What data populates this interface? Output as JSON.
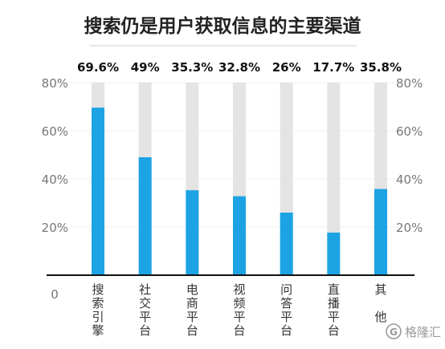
{
  "chart_data": {
    "type": "bar",
    "title": "搜索仍是用户获取信息的主要渠道",
    "categories": [
      "搜索引擎",
      "社交平台",
      "电商平台",
      "视频平台",
      "问答平台",
      "直播平台",
      "其他"
    ],
    "values": [
      69.6,
      49,
      35.3,
      32.8,
      26,
      17.7,
      35.8
    ],
    "value_labels": [
      "69.6%",
      "49%",
      "35.3%",
      "32.8%",
      "26%",
      "17.7%",
      "35.8%"
    ],
    "ylim": [
      0,
      80
    ],
    "ticks": [
      {
        "value": 20,
        "label": "20%"
      },
      {
        "value": 40,
        "label": "40%"
      },
      {
        "value": 60,
        "label": "60%"
      },
      {
        "value": 80,
        "label": "80%"
      }
    ],
    "zero_label": "0",
    "colors": {
      "bar": "#1ca3e4",
      "background_bar": "#e4e4e4",
      "baseline": "#111111"
    }
  },
  "watermark": {
    "text": "格隆汇",
    "logo_text": "G"
  }
}
